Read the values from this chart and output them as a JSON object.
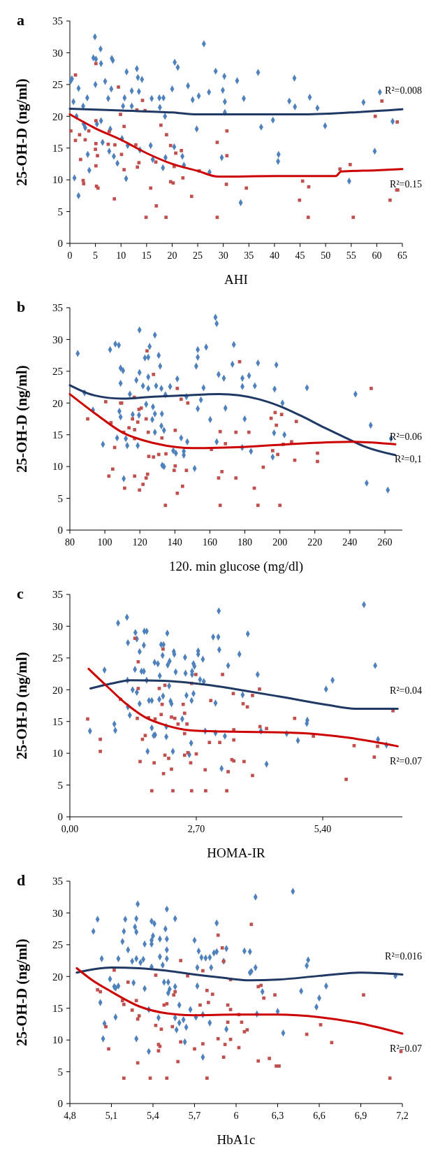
{
  "chart_data": [
    {
      "type": "scatter",
      "title": "a",
      "xlabel": "AHI",
      "ylabel": "25-OH-D (ng/ml)",
      "xlim": [
        0,
        65
      ],
      "ylim": [
        0,
        35
      ],
      "xticks": [
        0,
        5,
        10,
        15,
        20,
        25,
        30,
        35,
        40,
        45,
        50,
        55,
        60,
        65
      ],
      "yticks": [
        0,
        5,
        10,
        15,
        20,
        25,
        30,
        35
      ],
      "series": [
        {
          "type": "scatter",
          "marker": "diamond",
          "color": "#4f81bd",
          "x": [
            0.2,
            0.4,
            0.7,
            1.3,
            1.7,
            0.9,
            1.7,
            2.6,
            2.7,
            3,
            3.4,
            3.5,
            3.8,
            4.9,
            5,
            4.6,
            5.1,
            5.3,
            6,
            6.1,
            6.1,
            6.4,
            6.9,
            7.5,
            7.7,
            7.9,
            8.2,
            8.4,
            8.1,
            8.6,
            9.3,
            10.2,
            10.4,
            10.7,
            11.1,
            11,
            11.3,
            12.1,
            12.1,
            13.1,
            13.3,
            13.5,
            14.1,
            13.7,
            16,
            15.8,
            16.2,
            17.5,
            18.3,
            17.6,
            18.2,
            18.6,
            18.7,
            20,
            20.5,
            21.1,
            20.4,
            22,
            22.3,
            23.1,
            24,
            24.8,
            25.2,
            26.2,
            27.2,
            27.3,
            28.5,
            29.9,
            30.2,
            30.3,
            30.3,
            29.7,
            32.7,
            33.4,
            34,
            36.8,
            37.4,
            39.7,
            40.8,
            40.7,
            42.9,
            44,
            43.9,
            46.9,
            48.4,
            49.9,
            54.6,
            57.4,
            59.6,
            60.6,
            63.1
          ],
          "values": [
            25.6,
            25.9,
            22.3,
            20,
            24.4,
            10.3,
            7.5,
            21.6,
            18.8,
            18.2,
            22.9,
            14,
            11.5,
            32.5,
            25,
            29.2,
            29,
            18.8,
            30.6,
            28.3,
            19.3,
            15.9,
            25.5,
            22.8,
            14.5,
            18,
            29.1,
            28.8,
            24.3,
            13.7,
            12.6,
            16.5,
            21.6,
            22.9,
            27,
            10.2,
            15.4,
            24,
            21.6,
            27.5,
            26.1,
            23.9,
            25.8,
            14.7,
            22.8,
            15.4,
            13.2,
            22.9,
            22.9,
            21.4,
            11.9,
            20,
            13.5,
            24.3,
            28.5,
            27.7,
            15.2,
            13.7,
            12.3,
            24.8,
            22.6,
            18,
            23.2,
            31.4,
            23.8,
            11.2,
            27.1,
            24.1,
            26.3,
            22.3,
            20.6,
            13.5,
            25.6,
            6.4,
            22.8,
            26.9,
            18.3,
            19.4,
            14,
            12.9,
            22.4,
            21.5,
            26,
            23,
            21.3,
            18.5,
            9.8,
            22.2,
            14.5,
            23.8,
            19.2
          ]
        },
        {
          "type": "scatter",
          "marker": "square",
          "color": "#c0504d",
          "x": [
            0.2,
            1.1,
            1.1,
            1.9,
            2.1,
            2.6,
            2.7,
            3,
            3.7,
            5.1,
            5.1,
            5,
            5.1,
            5.2,
            5.5,
            5.4,
            5.1,
            7.5,
            7.7,
            8.7,
            8.8,
            9.5,
            9.9,
            10.1,
            10.6,
            10.6,
            12.9,
            13.2,
            13.5,
            13.1,
            14.2,
            14.7,
            14.9,
            15.8,
            16.9,
            16.8,
            17.8,
            18.9,
            18.8,
            19.7,
            20.2,
            19.7,
            20.4,
            20.7,
            21.8,
            22.1,
            23.8,
            25.3,
            28.8,
            28.8,
            30.6,
            30.7,
            30.7,
            34.5,
            45.5,
            44.9,
            46.7,
            46.6,
            52.8,
            54.8,
            55.4,
            59.7,
            61,
            62.6,
            63.9,
            64.1,
            64
          ],
          "values": [
            17.7,
            16.2,
            26.5,
            17.1,
            13.2,
            9.9,
            9.4,
            16.3,
            17.7,
            28.3,
            19.3,
            14.8,
            12.2,
            9,
            8.7,
            13.8,
            15.7,
            15.6,
            17.6,
            7,
            15.5,
            24.6,
            20.3,
            14,
            18.4,
            11.6,
            15.5,
            12,
            12.7,
            21,
            22.5,
            20.9,
            4.1,
            8.7,
            5.9,
            12.8,
            18.6,
            17.1,
            4.1,
            9.7,
            9.5,
            15.4,
            12.1,
            14.2,
            14.6,
            10.3,
            7.4,
            11.4,
            15.9,
            4.1,
            9.3,
            17.7,
            13.8,
            8.7,
            9.8,
            6.8,
            8.9,
            4.1,
            11.7,
            12.4,
            4.1,
            20,
            22.4,
            6.8,
            8.4,
            8.4,
            19.1
          ]
        },
        {
          "type": "line",
          "color": "#1f3864",
          "x": [
            0,
            10,
            20,
            25,
            35,
            45,
            55,
            65
          ],
          "values": [
            21.2,
            20.9,
            20.6,
            20.3,
            20.3,
            20.3,
            20.6,
            21.1
          ]
        },
        {
          "type": "line",
          "color": "#cc0000",
          "x": [
            0,
            5,
            10,
            15,
            20,
            25,
            29,
            40,
            52,
            53,
            60,
            65
          ],
          "values": [
            20.3,
            18.1,
            16.3,
            14.2,
            12.5,
            11.4,
            10.5,
            10.6,
            10.6,
            11.3,
            11.5,
            11.7
          ]
        }
      ],
      "annotations": [
        "R²=0.008",
        "R²=0.15"
      ]
    },
    {
      "type": "scatter",
      "title": "b",
      "xlabel": "120. min glucose (mg/dl)",
      "ylabel": "25-OH-D (ng/ml)",
      "xlim": [
        80,
        270
      ],
      "ylim": [
        0,
        35
      ],
      "xticks": [
        80,
        100,
        120,
        140,
        160,
        180,
        200,
        220,
        240,
        260
      ],
      "yticks": [
        0,
        5,
        10,
        15,
        20,
        25,
        30,
        35
      ],
      "series": [
        {
          "type": "scatter",
          "marker": "diamond",
          "color": "#4f81bd",
          "x": [
            84.5,
            88.4,
            93.2,
            98.9,
            103,
            106,
            108,
            107,
            109,
            110.4,
            109,
            108.3,
            109,
            110.8,
            112,
            112.8,
            114.3,
            115.9,
            118,
            118.8,
            119.5,
            119.8,
            119.8,
            121.8,
            122.9,
            123.6,
            124.8,
            124.8,
            124.8,
            125.6,
            127.1,
            127.5,
            128.6,
            128.6,
            128.6,
            129.3,
            130.8,
            131.6,
            132.3,
            132.6,
            132.3,
            133.8,
            132.8,
            133.8,
            134.6,
            137.3,
            139.1,
            140.6,
            141.4,
            143.6,
            145.1,
            145.1,
            147.1,
            146.6,
            151.3,
            152.2,
            153.1,
            153.1,
            153.1,
            154.9,
            156.4,
            157.9,
            160.2,
            163.2,
            163.9,
            163.9,
            165,
            168,
            168.9,
            172.9,
            173.7,
            178.5,
            178.6,
            178.6,
            179.9,
            182.4,
            183.5,
            185.7,
            187.5,
            195.9,
            196.7,
            197,
            198,
            201.5,
            202.6,
            215.5,
            243.2,
            249.6,
            251.9,
            261.7,
            263.5
          ],
          "values": [
            27.8,
            21.6,
            18.9,
            13.5,
            28.4,
            29.3,
            29.1,
            14.5,
            25.5,
            25.1,
            23.1,
            18.7,
            17.8,
            8.1,
            14.4,
            13.3,
            21.4,
            18.2,
            23.6,
            13.3,
            18.1,
            31.5,
            24.8,
            22.7,
            27.1,
            19.8,
            27.2,
            24.1,
            22.3,
            28.9,
            17.4,
            19.4,
            30.7,
            18.3,
            15.4,
            22.7,
            27.5,
            25.8,
            22.3,
            18.3,
            16.4,
            15.7,
            10.2,
            10,
            21.3,
            22.6,
            12.5,
            12.1,
            23.8,
            14.5,
            12.4,
            11.8,
            13.9,
            21,
            9.7,
            25.8,
            27.2,
            28.4,
            19.1,
            20.5,
            22.4,
            28.8,
            17.4,
            33.5,
            32.5,
            13.9,
            24.5,
            23.9,
            19.2,
            26.1,
            29.2,
            13,
            22.6,
            23.9,
            17.5,
            24.3,
            12.4,
            22.7,
            26.3,
            11.5,
            15.3,
            22.2,
            26,
            20,
            15,
            22.4,
            21.4,
            7.4,
            16.5,
            6.3,
            14.4
          ]
        },
        {
          "type": "scatter",
          "marker": "square",
          "color": "#c0504d",
          "x": [
            90.2,
            100.5,
            102.3,
            103.5,
            104.5,
            105.6,
            109,
            109.6,
            110.8,
            111.3,
            113.8,
            115.8,
            116.8,
            117,
            117,
            117,
            118.8,
            119.5,
            120.8,
            119.8,
            121.8,
            123.6,
            124.4,
            123.6,
            124.1,
            124.8,
            125.1,
            127.8,
            127.8,
            130.8,
            132.6,
            134.6,
            134.9,
            139.6,
            140.2,
            140.2,
            141.4,
            141.4,
            143.6,
            144.4,
            146.6,
            147.4,
            160.9,
            165,
            165.9,
            165.9,
            166.9,
            168.9,
            174.9,
            174.9,
            177,
            182.3,
            185.4,
            187.5,
            190.5,
            195,
            195.9,
            197.3,
            198,
            198.8,
            200,
            201,
            201.9,
            206.7,
            208.5,
            209.4,
            221.5,
            221.5,
            252.2
          ],
          "values": [
            17.5,
            20.2,
            8.5,
            16.9,
            9.6,
            13,
            20,
            20,
            15.4,
            6.6,
            16.1,
            17.5,
            20.9,
            8.5,
            14.4,
            15.8,
            17,
            19,
            19.2,
            6.3,
            7.2,
            8.2,
            8.8,
            17.5,
            28.2,
            15.4,
            11.6,
            24.5,
            11.5,
            11.9,
            14.5,
            3.9,
            12,
            9.4,
            15.7,
            10.1,
            22.3,
            5.8,
            20.6,
            6.9,
            9.4,
            20,
            12.7,
            8.2,
            15.5,
            3.9,
            9.2,
            13.6,
            8.2,
            15.4,
            26.5,
            15.4,
            6.6,
            3.9,
            9.9,
            17.6,
            12.5,
            18.5,
            16.5,
            11.9,
            3.9,
            18.2,
            13.5,
            13.9,
            11,
            17.1,
            12.1,
            10.8,
            22.3
          ]
        },
        {
          "type": "line",
          "color": "#1f3864",
          "x": [
            80,
            94,
            109.8,
            127.8,
            145,
            165.4,
            188,
            200,
            212,
            225.6,
            237,
            248,
            266
          ],
          "values": [
            22.8,
            21.2,
            20.7,
            21,
            21.2,
            21.4,
            20.6,
            19.5,
            18,
            16.1,
            14.6,
            13.2,
            11.8
          ]
        },
        {
          "type": "line",
          "color": "#cc0000",
          "x": [
            80,
            94.7,
            109.8,
            127.8,
            150.4,
            180.4,
            210.5,
            240.6,
            266
          ],
          "values": [
            21.4,
            18.3,
            15.4,
            13.7,
            12.9,
            13.1,
            13.6,
            13.9,
            13.5
          ]
        }
      ],
      "annotations": [
        "R²=0.06",
        "R²=0,1"
      ]
    },
    {
      "type": "scatter",
      "title": "c",
      "xlabel": "HOMA-IR",
      "ylabel": "25-OH-D (ng/ml)",
      "xlim": [
        0,
        7.1
      ],
      "ylim": [
        0,
        35
      ],
      "xticks": [
        {
          "value": 0,
          "label": "0,00"
        },
        {
          "value": 2.7,
          "label": "2,70"
        },
        {
          "value": 5.4,
          "label": "5,40"
        }
      ],
      "yticks": [
        0,
        5,
        10,
        15,
        20,
        25,
        30,
        35
      ],
      "series": [
        {
          "type": "scatter",
          "marker": "diamond",
          "color": "#4f81bd",
          "x": [
            0.43,
            0.74,
            0.95,
            0.97,
            1.03,
            1.22,
            1.24,
            1.23,
            1.24,
            1.28,
            1.34,
            1.39,
            1.4,
            1.43,
            1.43,
            1.49,
            1.49,
            1.53,
            1.58,
            1.58,
            1.59,
            1.64,
            1.64,
            1.66,
            1.69,
            1.75,
            1.75,
            1.79,
            1.82,
            1.81,
            1.88,
            1.92,
            1.91,
            1.95,
            1.98,
            1.99,
            2,
            2.06,
            2.06,
            2.08,
            2.09,
            2.12,
            2.13,
            2.15,
            2.17,
            2.2,
            2.22,
            2.23,
            2.26,
            2.4,
            2.46,
            2.47,
            2.49,
            2.55,
            2.59,
            2.61,
            2.61,
            2.64,
            2.64,
            2.66,
            2.6,
            2.74,
            2.74,
            2.78,
            2.84,
            2.86,
            2.89,
            3.06,
            3.11,
            3.11,
            3.17,
            3.18,
            3.19,
            3.24,
            3.31,
            3.38,
            3.62,
            3.69,
            3.8,
            4.01,
            4.08,
            4.2,
            4.63,
            4.87,
            5.07,
            5.06,
            5.47,
            5.61,
            6.28,
            6.52,
            6.58,
            6.76
          ],
          "values": [
            13.5,
            23.1,
            14.6,
            13.6,
            30.5,
            31.4,
            27.4,
            21.5,
            17.3,
            16,
            20,
            23.2,
            29,
            28,
            19.6,
            26,
            17.8,
            22.9,
            22.9,
            27,
            29.2,
            29.2,
            21.5,
            10.3,
            18.3,
            18.3,
            14,
            12.8,
            12.9,
            24.3,
            24.1,
            22.2,
            18.5,
            27.1,
            25.4,
            19,
            27.1,
            14.2,
            12.6,
            28.9,
            23.9,
            20.6,
            24.5,
            18.2,
            17.8,
            10.3,
            26,
            25.6,
            22.8,
            15.4,
            25.1,
            22.6,
            19.1,
            9.8,
            11.6,
            22.9,
            22.4,
            19.4,
            24.1,
            23.7,
            18.3,
            25.6,
            26.1,
            21.6,
            24.8,
            21.3,
            13.5,
            28.3,
            13.2,
            17.9,
            28.3,
            32.4,
            26.3,
            7.6,
            12.7,
            23.8,
            25.6,
            19.2,
            28.8,
            22.4,
            13.5,
            8.3,
            13.1,
            12,
            15.2,
            14.7,
            20.1,
            21.5,
            33.4,
            23.8,
            12.2,
            11.3
          ]
        },
        {
          "type": "scatter",
          "marker": "square",
          "color": "#c0504d",
          "x": [
            0.38,
            0.65,
            0.65,
            1.08,
            1.39,
            1.46,
            1.46,
            1.44,
            1.55,
            1.61,
            1.68,
            1.8,
            1.82,
            1.91,
            1.95,
            1.97,
            1.99,
            2.03,
            2.03,
            2.11,
            2.17,
            2.17,
            2.24,
            2.31,
            2.42,
            2.45,
            2.45,
            2.45,
            2.5,
            2.52,
            2.6,
            2.69,
            2.7,
            2.58,
            2.89,
            2.98,
            3.01,
            3.2,
            3.26,
            3.38,
            3.46,
            3.5,
            3.5,
            3.5,
            3.49,
            3.7,
            3.72,
            3.79,
            3.9,
            4.05,
            4.06,
            4.2,
            4.8,
            5.2,
            6.07,
            6.5,
            6.57,
            6.9,
            1.75,
            2.2,
            2.6,
            2.9,
            3.35,
            3.9,
            5.9,
            2,
            1.5
          ],
          "values": [
            15.4,
            12.2,
            10.3,
            18.5,
            28.1,
            24.4,
            20.2,
            15.5,
            12.2,
            12.8,
            15.6,
            8.5,
            15.4,
            20.2,
            16.1,
            17.7,
            26.4,
            20.7,
            9.7,
            9.2,
            7.5,
            15.7,
            15.5,
            14.6,
            17.7,
            16.3,
            13.1,
            9.7,
            14.6,
            10.1,
            21,
            22.4,
            9.9,
            8.5,
            7.4,
            11.7,
            18.3,
            11.7,
            22.4,
            7.1,
            9,
            8.8,
            12.1,
            13.7,
            19.4,
            17.8,
            8.7,
            17.3,
            19.1,
            20.1,
            14.2,
            13.9,
            15.5,
            12.7,
            11.2,
            9.4,
            11.1,
            16.7,
            4.1,
            4.1,
            4.1,
            4.1,
            4.1,
            6.5,
            5.9,
            6.8,
            8.7
          ]
        },
        {
          "type": "line",
          "color": "#1f3864",
          "x": [
            0.44,
            0.9,
            1.3,
            2,
            2.9,
            3.7,
            4.5,
            5.5,
            6.1,
            7
          ],
          "values": [
            20.2,
            21,
            21.5,
            21.4,
            20.8,
            19.9,
            18.9,
            17.6,
            17,
            17
          ]
        },
        {
          "type": "line",
          "color": "#cc0000",
          "x": [
            0.4,
            0.8,
            1.2,
            1.6,
            2.1,
            2.6,
            3.5,
            4.5,
            5.3,
            6,
            6.5,
            7
          ],
          "values": [
            23.3,
            20.5,
            17.8,
            15.7,
            14.3,
            13.6,
            13.4,
            13.3,
            13,
            12.4,
            11.8,
            11.1
          ]
        }
      ],
      "annotations": [
        "R²=0.04",
        "R²=0.07"
      ]
    },
    {
      "type": "scatter",
      "title": "d",
      "xlabel": "HbA1c",
      "ylabel": "25-OH-D (ng/ml)",
      "xlim": [
        4.8,
        7.2
      ],
      "ylim": [
        0,
        35
      ],
      "xticks": [
        {
          "value": 4.8,
          "label": "4,8"
        },
        {
          "value": 5.1,
          "label": "5,1"
        },
        {
          "value": 5.4,
          "label": "5,4"
        },
        {
          "value": 5.7,
          "label": "5,7"
        },
        6,
        {
          "value": 6.3,
          "label": "6,3"
        },
        {
          "value": 6.6,
          "label": "6,6"
        },
        {
          "value": 6.9,
          "label": "6,9"
        },
        {
          "value": 7.2,
          "label": "7,2"
        }
      ],
      "yticks": [
        0,
        5,
        10,
        15,
        20,
        25,
        30,
        35
      ],
      "series": [
        {
          "type": "scatter",
          "marker": "diamond",
          "color": "#4f81bd",
          "x": [
            4.97,
            5,
            5.03,
            5.02,
            5.04,
            5.05,
            5.09,
            5.12,
            5.13,
            5.13,
            5.15,
            5.15,
            5.18,
            5.19,
            5.2,
            5.22,
            5.25,
            5.26,
            5.27,
            5.28,
            5.28,
            5.28,
            5.28,
            5.29,
            5.31,
            5.33,
            5.34,
            5.34,
            5.37,
            5.37,
            5.39,
            5.4,
            5.39,
            5.39,
            5.41,
            5.39,
            5.44,
            5.45,
            5.45,
            5.47,
            5.48,
            5.49,
            5.5,
            5.5,
            5.5,
            5.5,
            5.51,
            5.51,
            5.52,
            5.56,
            5.56,
            5.56,
            5.57,
            5.59,
            5.59,
            5.62,
            5.63,
            5.64,
            5.67,
            5.7,
            5.71,
            5.72,
            5.72,
            5.73,
            5.75,
            5.76,
            5.76,
            5.78,
            5.81,
            5.81,
            5.82,
            5.84,
            5.86,
            5.86,
            5.91,
            5.93,
            5.93,
            6.06,
            6.1,
            6.1,
            6.11,
            6.14,
            6.14,
            6.15,
            6.19,
            6.3,
            6.34,
            6.41,
            6.47,
            6.51,
            6.52,
            6.58,
            6.6,
            6.65,
            7.15
          ],
          "values": [
            27.1,
            29,
            22.8,
            15.9,
            10.2,
            12.6,
            19.6,
            18.4,
            18.2,
            13.6,
            18.5,
            22.8,
            25.5,
            27.1,
            29,
            24.2,
            22.4,
            19,
            27.8,
            29.1,
            27,
            22.8,
            10.2,
            31.4,
            22.2,
            22.7,
            18.1,
            25.1,
            8.2,
            14.8,
            25.7,
            26.4,
            25.1,
            28.7,
            28.3,
            21.5,
            13.5,
            25.9,
            23.1,
            21.8,
            19.1,
            27.5,
            22.8,
            25.9,
            24.2,
            30.6,
            19.1,
            17.4,
            18,
            29.1,
            18.4,
            13.5,
            11.6,
            15.5,
            12.7,
            13.2,
            9.7,
            12,
            14.8,
            25.7,
            13.6,
            21.4,
            18.5,
            24,
            23,
            7.3,
            14,
            22.9,
            12.7,
            23,
            21.4,
            23.7,
            23.9,
            28.4,
            22.4,
            24.4,
            11.7,
            24,
            23.9,
            20.6,
            20.8,
            32.5,
            21.4,
            14.1,
            17.6,
            14.5,
            11.1,
            33.4,
            17.7,
            21.7,
            22.6,
            15.2,
            16.6,
            18.5,
            20.1
          ]
        },
        {
          "type": "scatter",
          "marker": "square",
          "color": "#c0504d",
          "x": [
            5,
            5.02,
            5.06,
            5.08,
            5.12,
            5.18,
            5.19,
            5.19,
            5.22,
            5.25,
            5.28,
            5.29,
            5.3,
            5.29,
            5.38,
            5.42,
            5.42,
            5.44,
            5.44,
            5.45,
            5.46,
            5.48,
            5.5,
            5.5,
            5.54,
            5.55,
            5.56,
            5.58,
            5.6,
            5.6,
            5.65,
            5.7,
            5.74,
            5.76,
            5.76,
            5.79,
            5.79,
            5.8,
            5.83,
            5.87,
            5.87,
            5.9,
            5.91,
            5.91,
            5.92,
            5.94,
            5.94,
            5.96,
            5.96,
            5.96,
            6.02,
            6.02,
            6.04,
            6.06,
            6.08,
            6.11,
            6.16,
            6.16,
            6.18,
            6.2,
            6.24,
            6.28,
            6.29,
            6.31,
            6.51,
            6.61,
            6.69,
            6.92,
            7.11,
            7.19
          ],
          "values": [
            17.9,
            17.6,
            12.1,
            8.6,
            21,
            16.2,
            15.6,
            4,
            19.1,
            14.7,
            16.2,
            13.3,
            13.8,
            6.4,
            4,
            20.2,
            12.3,
            9.3,
            8.3,
            9,
            11.7,
            15.5,
            4,
            15.7,
            12.1,
            17.1,
            17.6,
            6.6,
            22.5,
            9.7,
            20.1,
            8.6,
            15.5,
            20.9,
            9.4,
            4,
            17.8,
            15.9,
            17.2,
            10.2,
            26.5,
            24.5,
            22.4,
            7.3,
            9.3,
            12.8,
            15.5,
            14.8,
            10.1,
            19.5,
            8.8,
            14,
            12.8,
            11.3,
            11.6,
            28.2,
            6.7,
            18.4,
            18.6,
            16.6,
            7.1,
            17.1,
            5.9,
            5.9,
            10.9,
            12.4,
            9.6,
            17.1,
            4,
            8.2
          ]
        },
        {
          "type": "line",
          "color": "#1f3864",
          "x": [
            4.85,
            5.1,
            5.3,
            5.5,
            5.7,
            5.9,
            6.1,
            6.3,
            6.6,
            6.9,
            7.2
          ],
          "values": [
            20.6,
            21.4,
            21.3,
            20.9,
            20.3,
            19.8,
            19.4,
            19.5,
            20.1,
            20.6,
            20.3
          ]
        },
        {
          "type": "line",
          "color": "#cc0000",
          "x": [
            4.85,
            4.95,
            5.1,
            5.3,
            5.5,
            5.7,
            6,
            6.3,
            6.6,
            6.9,
            7.2
          ],
          "values": [
            21.3,
            19.6,
            17.6,
            15.3,
            14.2,
            13.9,
            14,
            14,
            13.6,
            12.6,
            11
          ]
        }
      ],
      "annotations": [
        "R²=0.016",
        "R²=0.07"
      ]
    }
  ]
}
